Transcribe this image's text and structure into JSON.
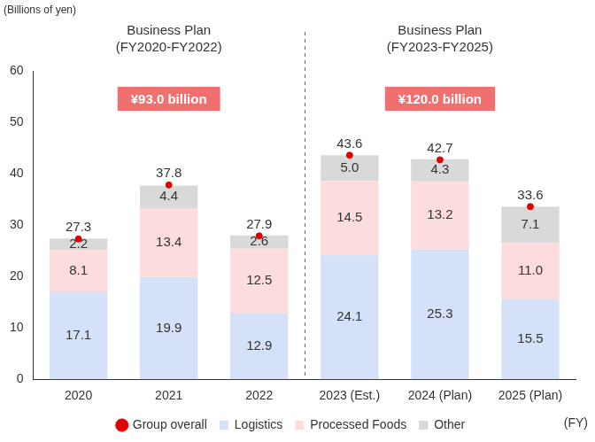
{
  "chart_data": {
    "type": "bar",
    "stacked": true,
    "y_label": "(Billions of yen)",
    "x_label": "(FY)",
    "categories": [
      "2020",
      "2021",
      "2022",
      "2023 (Est.)",
      "2024 (Plan)",
      "2025 (Plan)"
    ],
    "series": [
      {
        "name": "Logistics",
        "color": "#d5e1f9",
        "values": [
          17.1,
          19.9,
          12.9,
          24.1,
          25.3,
          15.5
        ],
        "value_labels": [
          "17.1",
          "19.9",
          "12.9",
          "24.1",
          "25.3",
          "15.5"
        ]
      },
      {
        "name": "Processed Foods",
        "color": "#fcdcdc",
        "values": [
          8.1,
          13.4,
          12.5,
          14.5,
          13.2,
          11.0
        ],
        "value_labels": [
          "8.1",
          "13.4",
          "12.5",
          "14.5",
          "13.2",
          "11.0"
        ]
      },
      {
        "name": "Other",
        "color": "#d9d9d9",
        "values": [
          2.2,
          4.4,
          2.6,
          5.0,
          4.3,
          7.1
        ],
        "value_labels": [
          "2.2",
          "4.4",
          "2.6",
          "5.0",
          "4.3",
          "7.1"
        ]
      },
      {
        "name": "Group overall",
        "color": "#e00000",
        "type": "scatter",
        "marker": "circle",
        "line_style": "none",
        "values": [
          27.3,
          37.8,
          27.9,
          43.6,
          42.7,
          33.6
        ],
        "value_labels": [
          "27.3",
          "37.8",
          "27.9",
          "43.6",
          "42.7",
          "33.6"
        ]
      }
    ],
    "groups": [
      {
        "title": [
          "Business Plan",
          "(FY2020-FY2022)"
        ],
        "label": "¥93.0 billion",
        "categories": [
          "2020",
          "2021",
          "2022"
        ]
      },
      {
        "title": [
          "Business Plan",
          "(FY2023-FY2025)"
        ],
        "label": "¥120.0 billion",
        "categories": [
          "2023 (Est.)",
          "2024 (Plan)",
          "2025 (Plan)"
        ]
      }
    ],
    "ylim": [
      0,
      60
    ],
    "yticks": [
      0,
      10,
      20,
      30,
      40,
      50,
      60
    ],
    "grid": false,
    "legend": "bottom",
    "data_labels": true
  }
}
